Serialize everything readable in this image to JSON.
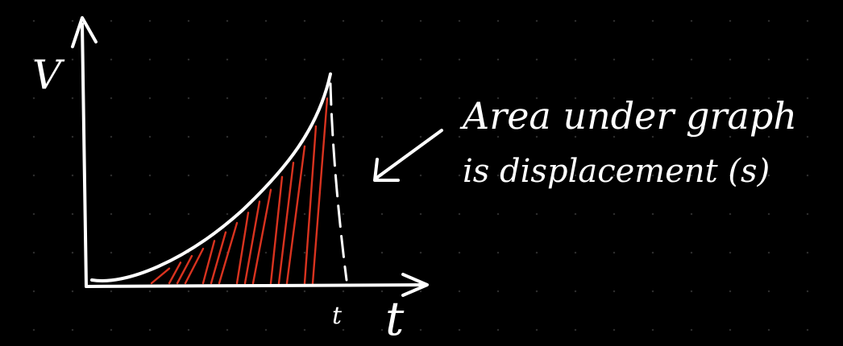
{
  "axes": {
    "y_label": "V",
    "x_label": "t",
    "x_tick_label": "t"
  },
  "annotation": {
    "line1": "Area under graph",
    "line2": "is displacement (s)"
  },
  "colors": {
    "background": "#000000",
    "ink": "#ffffff",
    "hatch": "#d9331f",
    "grid_dot": "#2e2e2e"
  }
}
